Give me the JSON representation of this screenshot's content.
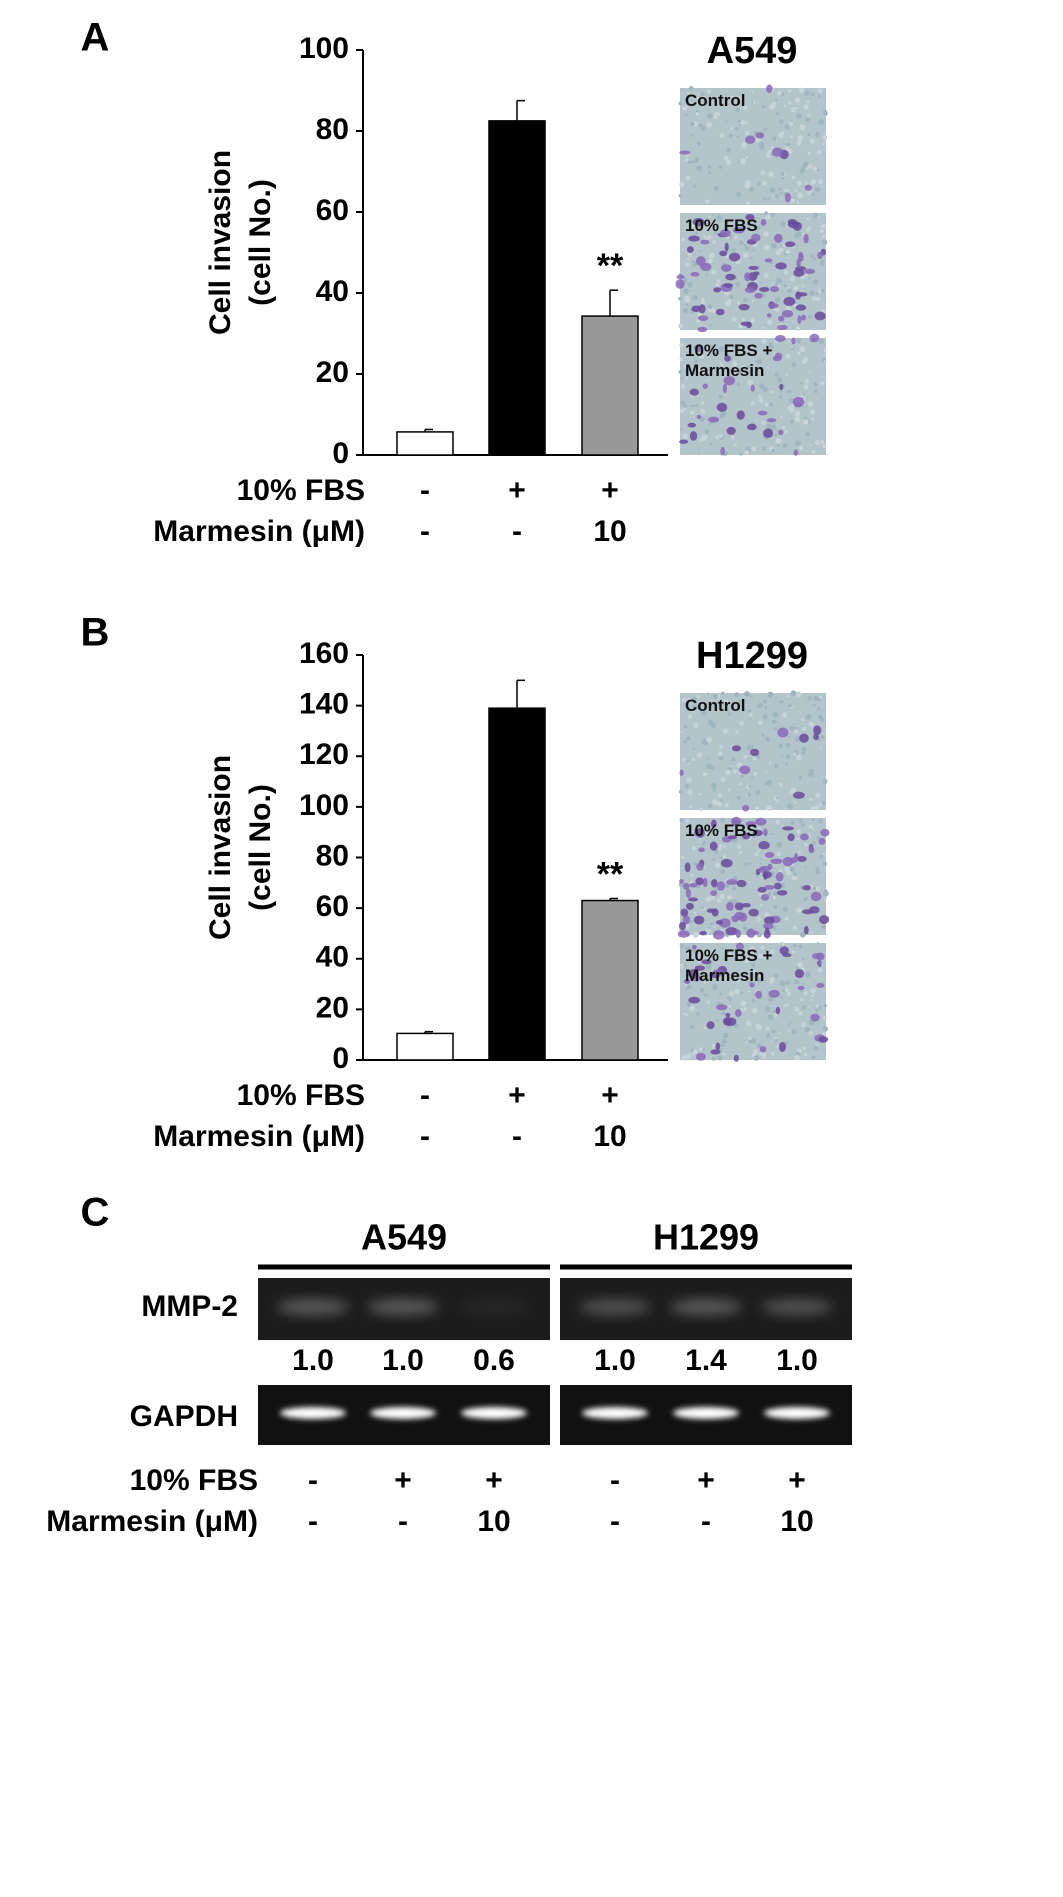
{
  "chart_data": [
    {
      "type": "bar",
      "panel": "A",
      "title": "A549",
      "ylabel": [
        "Cell invasion",
        "(cell No.)"
      ],
      "series": [
        {
          "colors": [
            "#ffffff",
            "#000000",
            "#999999"
          ],
          "values": [
            5.7,
            82.5,
            34.3
          ],
          "errors": [
            0.6,
            5,
            6.4
          ]
        }
      ],
      "significance": [
        null,
        null,
        "**"
      ],
      "conditions": [
        {
          "label": "10% FBS",
          "values": [
            "-",
            "+",
            "+"
          ]
        },
        {
          "label": "Marmesin (μM)",
          "values": [
            "-",
            "-",
            "10"
          ]
        }
      ],
      "micrographs": [
        "Control",
        "10% FBS",
        "10% FBS + Marmesin"
      ],
      "ylim": [
        0,
        100
      ],
      "yticks": [
        0,
        20,
        40,
        60,
        80,
        100
      ]
    },
    {
      "type": "bar",
      "panel": "B",
      "title": "H1299",
      "ylabel": [
        "Cell invasion",
        "(cell No.)"
      ],
      "series": [
        {
          "colors": [
            "#ffffff",
            "#000000",
            "#999999"
          ],
          "values": [
            10.5,
            139,
            63
          ],
          "errors": [
            0.7,
            11,
            0.8
          ]
        }
      ],
      "significance": [
        null,
        null,
        "**"
      ],
      "conditions": [
        {
          "label": "10% FBS",
          "values": [
            "-",
            "+",
            "+"
          ]
        },
        {
          "label": "Marmesin (μM)",
          "values": [
            "-",
            "-",
            "10"
          ]
        }
      ],
      "micrographs": [
        "Control",
        "10% FBS",
        "10% FBS + Marmesin"
      ],
      "ylim": [
        0,
        160
      ],
      "yticks": [
        0,
        20,
        40,
        60,
        80,
        100,
        120,
        140,
        160
      ]
    }
  ],
  "gel": {
    "panel": "C",
    "groups": [
      "A549",
      "H1299"
    ],
    "rows": [
      {
        "name": "MMP-2",
        "ratios": [
          "1.0",
          "1.0",
          "0.6",
          "1.0",
          "1.4",
          "1.0"
        ]
      },
      {
        "name": "GAPDH"
      }
    ],
    "conditions": [
      {
        "label": "10% FBS",
        "values": [
          "-",
          "+",
          "+",
          "-",
          "+",
          "+"
        ]
      },
      {
        "label": "Marmesin (μM)",
        "values": [
          "-",
          "-",
          "10",
          "-",
          "-",
          "10"
        ]
      }
    ]
  }
}
